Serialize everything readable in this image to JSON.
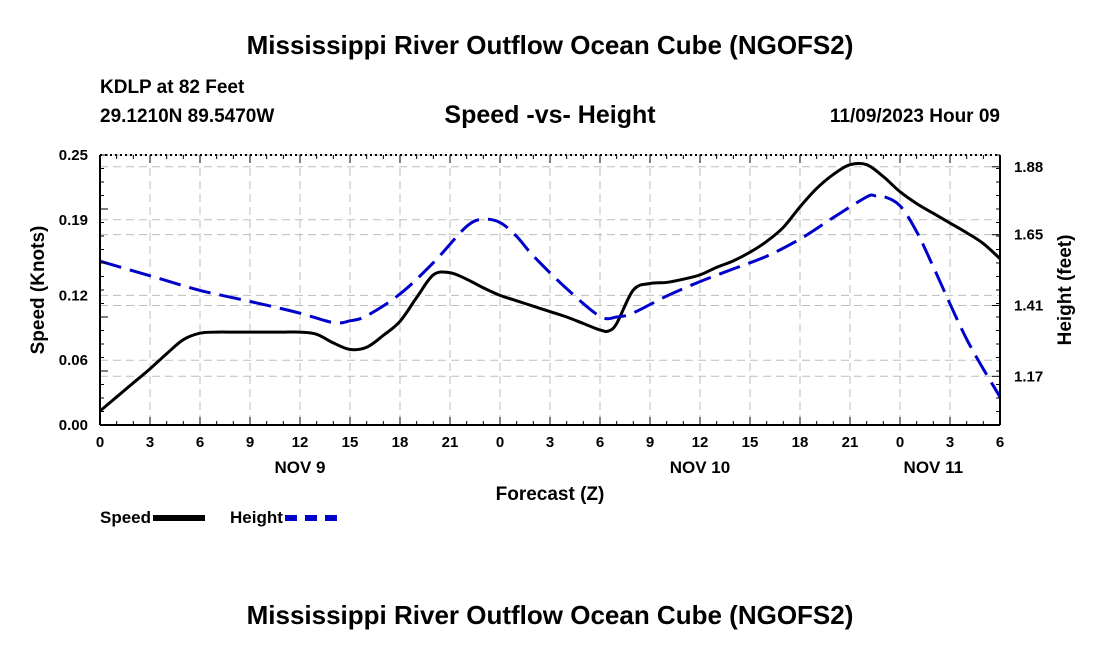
{
  "header": {
    "title": "Mississippi River Outflow Ocean Cube (NGOFS2)",
    "station": "KDLP at 82 Feet",
    "coords": "29.1210N  89.5470W",
    "subtitle": "Speed -vs- Height",
    "datetime": "11/09/2023 Hour 09"
  },
  "footer": {
    "title": "Mississippi River Outflow Ocean Cube (NGOFS2)"
  },
  "legend": {
    "speed_label": "Speed",
    "height_label": "Height",
    "speed_color": "#000000",
    "height_color": "#0000cc"
  },
  "chart_data": {
    "type": "line",
    "title": "Speed -vs- Height",
    "xlabel": "Forecast (Z)",
    "ylabel_left": "Speed (Knots)",
    "ylabel_right": "Height (feet)",
    "x_unit": "hours from NOV 9 00Z",
    "xlim": [
      0,
      54
    ],
    "ylim_left": [
      0,
      0.25
    ],
    "ylim_right": [
      1.005,
      1.92
    ],
    "x_ticks": [
      0,
      3,
      6,
      9,
      12,
      15,
      18,
      21,
      24,
      27,
      30,
      33,
      36,
      39,
      42,
      45,
      48,
      51,
      54
    ],
    "x_tick_labels": [
      "0",
      "3",
      "6",
      "9",
      "12",
      "15",
      "18",
      "21",
      "0",
      "3",
      "6",
      "9",
      "12",
      "15",
      "18",
      "21",
      "0",
      "3",
      "6"
    ],
    "date_labels": [
      {
        "label": "NOV 9",
        "x": 12
      },
      {
        "label": "NOV 10",
        "x": 36
      },
      {
        "label": "NOV 11",
        "x": 50
      }
    ],
    "y_ticks_left": [
      0.0,
      0.06,
      0.12,
      0.19,
      0.25
    ],
    "y_tick_labels_left": [
      "0.00",
      "0.06",
      "0.12",
      "0.19",
      "0.25"
    ],
    "y_ticks_right": [
      1.17,
      1.41,
      1.65,
      1.88
    ],
    "y_tick_labels_right": [
      "1.17",
      "1.41",
      "1.65",
      "1.88"
    ],
    "grid": true,
    "series": [
      {
        "name": "Speed",
        "axis": "left",
        "style": "solid",
        "color": "#000000",
        "x": [
          0,
          1,
          2,
          3,
          4,
          5,
          6,
          7,
          8,
          9,
          10,
          11,
          12,
          13,
          14,
          15,
          16,
          17,
          18,
          19,
          20,
          21,
          22,
          23,
          24,
          25,
          26,
          27,
          28,
          29,
          30,
          30.5,
          31,
          32,
          33,
          34,
          35,
          36,
          37,
          38,
          39,
          40,
          41,
          42,
          43,
          44,
          45,
          46,
          47,
          48,
          49,
          50,
          51,
          52,
          53,
          54
        ],
        "values": [
          0.013,
          0.026,
          0.039,
          0.052,
          0.066,
          0.079,
          0.085,
          0.086,
          0.086,
          0.086,
          0.086,
          0.086,
          0.086,
          0.084,
          0.076,
          0.07,
          0.072,
          0.083,
          0.096,
          0.118,
          0.139,
          0.141,
          0.135,
          0.127,
          0.12,
          0.115,
          0.11,
          0.105,
          0.1,
          0.094,
          0.088,
          0.087,
          0.094,
          0.125,
          0.131,
          0.132,
          0.135,
          0.139,
          0.146,
          0.152,
          0.16,
          0.17,
          0.183,
          0.202,
          0.219,
          0.232,
          0.241,
          0.241,
          0.23,
          0.216,
          0.205,
          0.196,
          0.187,
          0.178,
          0.168,
          0.154
        ]
      },
      {
        "name": "Height",
        "axis": "right",
        "style": "dashed",
        "color": "#0000cc",
        "x": [
          0,
          2,
          4,
          6,
          8,
          10,
          12,
          14,
          15,
          16,
          18,
          20,
          22,
          23,
          24,
          25,
          26,
          28,
          30,
          31,
          32,
          34,
          36,
          38,
          40,
          42,
          44,
          46,
          46.5,
          47,
          48,
          49,
          50,
          52,
          54
        ],
        "values": [
          1.56,
          1.527,
          1.494,
          1.461,
          1.436,
          1.411,
          1.384,
          1.352,
          1.358,
          1.375,
          1.449,
          1.555,
          1.678,
          1.702,
          1.691,
          1.644,
          1.578,
          1.467,
          1.373,
          1.371,
          1.385,
          1.442,
          1.491,
          1.534,
          1.577,
          1.635,
          1.708,
          1.778,
          1.782,
          1.78,
          1.748,
          1.66,
          1.541,
          1.296,
          1.1
        ]
      }
    ]
  }
}
